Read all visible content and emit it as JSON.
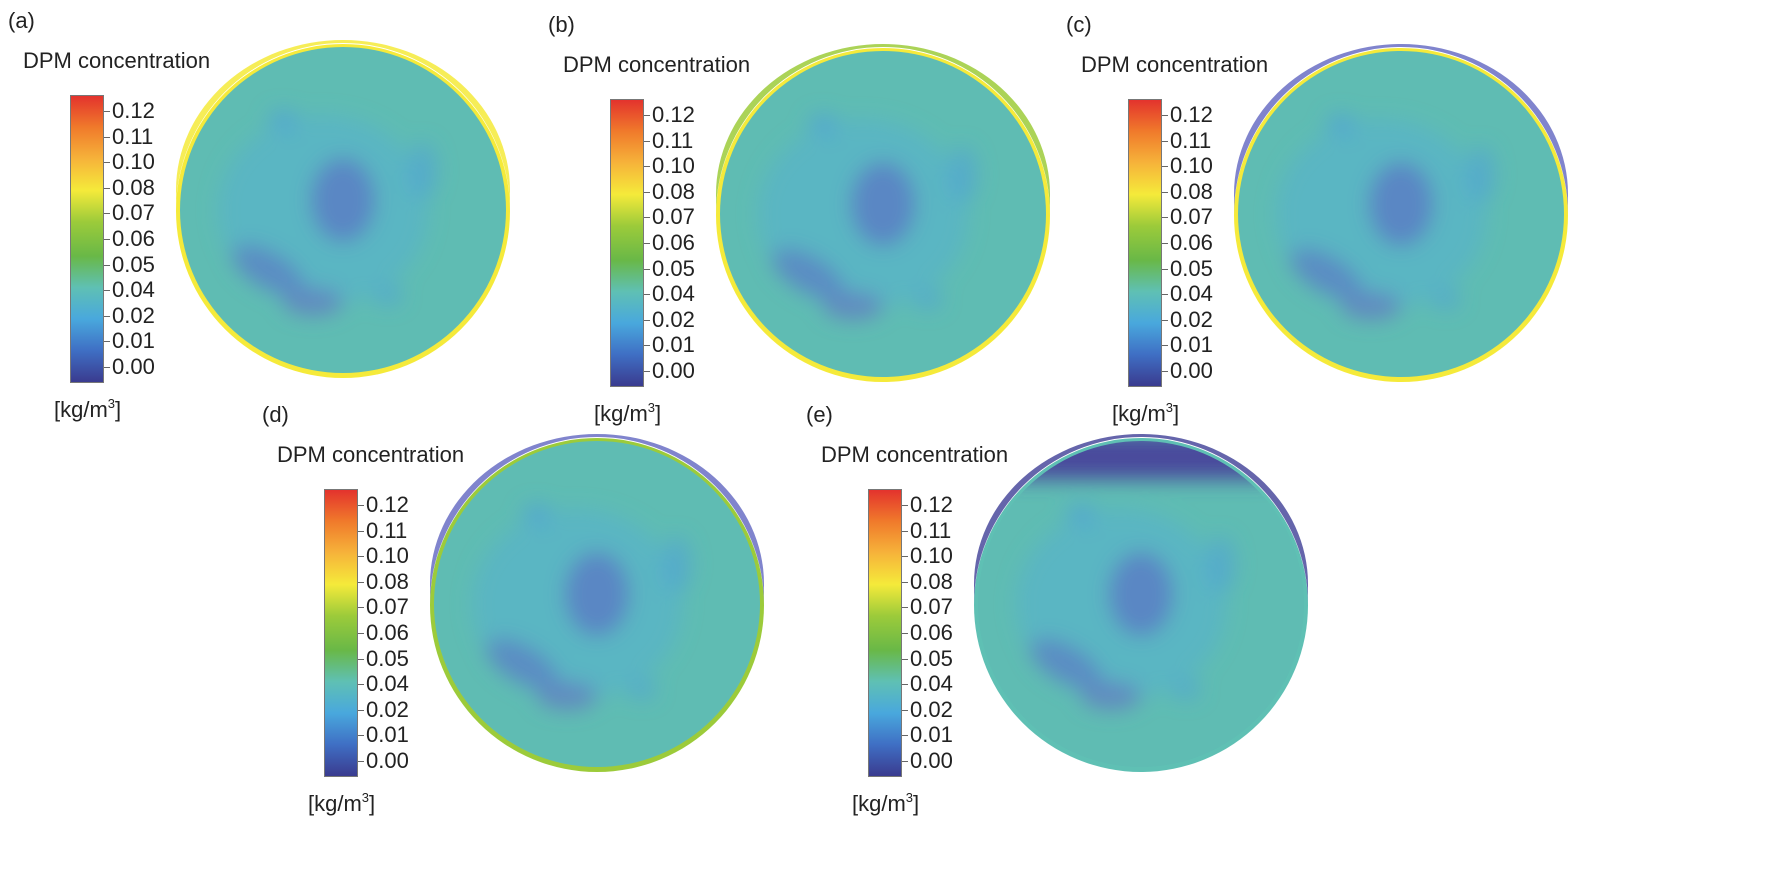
{
  "legend": {
    "title": "DPM concentration",
    "unit_base": "[kg/m",
    "unit_exp": "3",
    "unit_close": "]",
    "ticks": [
      "0.12",
      "0.11",
      "0.10",
      "0.08",
      "0.07",
      "0.06",
      "0.05",
      "0.04",
      "0.02",
      "0.01",
      "0.00"
    ],
    "colormap": [
      "#3a3b8f",
      "#3f6fc4",
      "#49a8dd",
      "#5fc0b4",
      "#69b847",
      "#9ccb3a",
      "#f5ea3a",
      "#f6b33a",
      "#f07a2b",
      "#e3332d"
    ]
  },
  "panels": [
    {
      "label": "(a)",
      "rim_top": "#f5ea3a",
      "rim_bottom": "#f5ea3a"
    },
    {
      "label": "(b)",
      "rim_top": "#9ccb3a",
      "rim_bottom": "#f5ea3a"
    },
    {
      "label": "(c)",
      "rim_top": "#6a6fc4",
      "rim_bottom": "#f5ea3a"
    },
    {
      "label": "(d)",
      "rim_top": "#6a6fc4",
      "rim_bottom": "#9ccb3a"
    },
    {
      "label": "(e)",
      "rim_top": "#4a4a9c",
      "rim_bottom": "#5fc0b4"
    }
  ]
}
